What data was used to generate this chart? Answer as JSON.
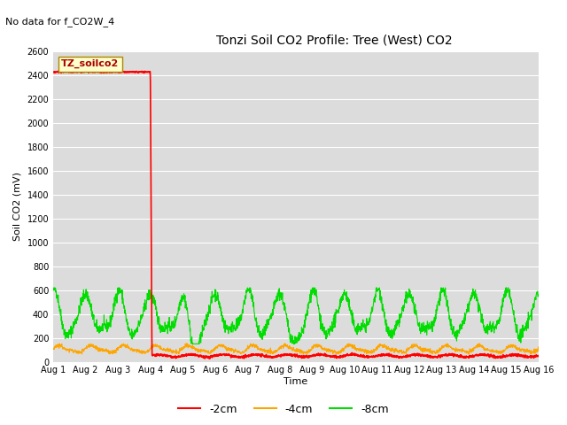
{
  "title": "Tonzi Soil CO2 Profile: Tree (West) CO2",
  "no_data_text": "No data for f_CO2W_4",
  "legend_box_label": "TZ_soilco2",
  "ylabel": "Soil CO2 (mV)",
  "xlabel": "Time",
  "ylim": [
    0,
    2600
  ],
  "xlim": [
    0,
    15
  ],
  "yticks": [
    0,
    200,
    400,
    600,
    800,
    1000,
    1200,
    1400,
    1600,
    1800,
    2000,
    2200,
    2400,
    2600
  ],
  "xtick_labels": [
    "Aug 1",
    "Aug 2",
    "Aug 3",
    "Aug 4",
    "Aug 5",
    "Aug 6",
    "Aug 7",
    "Aug 8",
    "Aug 9",
    "Aug 10",
    "Aug 11",
    "Aug 12",
    "Aug 13",
    "Aug 14",
    "Aug 15",
    "Aug 16"
  ],
  "bg_color": "#dcdcdc",
  "grid_color": "#ffffff",
  "fig_bg_color": "#ffffff",
  "line_colors": {
    "minus2cm": "#ff0000",
    "minus4cm": "#ffa500",
    "minus8cm": "#00dd00"
  },
  "legend_labels": [
    "-2cm",
    "-4cm",
    "-8cm"
  ],
  "legend_colors": [
    "#ff0000",
    "#ffa500",
    "#00dd00"
  ],
  "legend_box_bg": "#ffffcc",
  "legend_box_border": "#aa8800"
}
